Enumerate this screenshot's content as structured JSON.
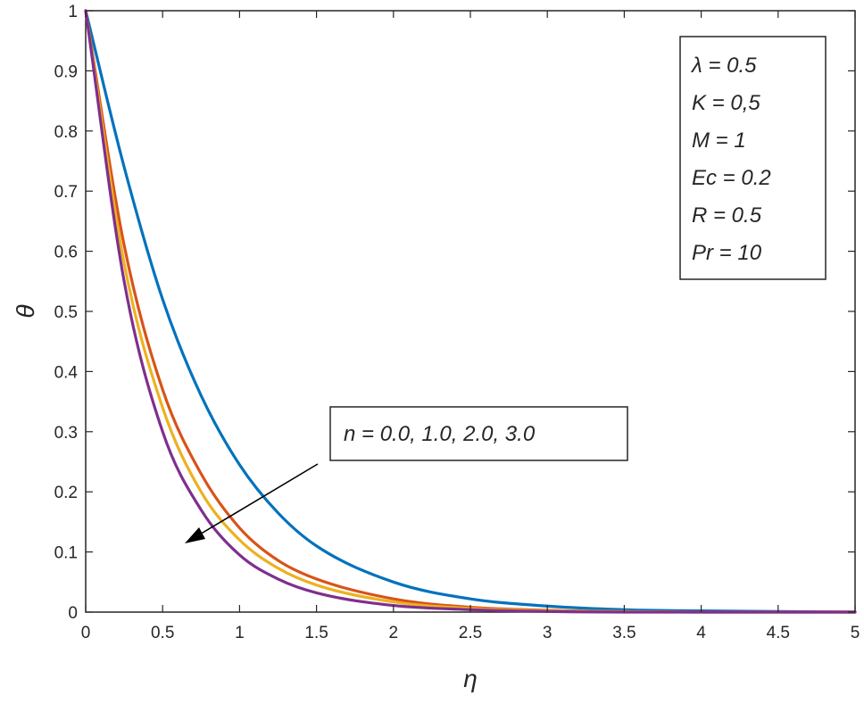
{
  "chart_data": {
    "type": "line",
    "xlabel": "η",
    "ylabel": "θ",
    "xlim": [
      0,
      5
    ],
    "ylim": [
      0,
      1
    ],
    "x_ticks": [
      "0",
      "0.5",
      "1",
      "1.5",
      "2",
      "2.5",
      "3",
      "3.5",
      "4",
      "4.5",
      "5"
    ],
    "y_ticks": [
      "0",
      "0.1",
      "0.2",
      "0.3",
      "0.4",
      "0.5",
      "0.6",
      "0.7",
      "0.8",
      "0.9",
      "1"
    ],
    "grid": false,
    "parameters_box": [
      "λ = 0.5",
      "K = 0,5",
      "M = 1",
      "Ec = 0.2",
      "R = 0.5",
      "Pr = 10"
    ],
    "annotation": "n = 0.0, 1.0, 2.0, 3.0",
    "x": [
      0,
      0.25,
      0.5,
      0.75,
      1,
      1.25,
      1.5,
      2,
      2.5,
      3,
      3.5,
      4,
      4.5,
      5
    ],
    "series": [
      {
        "color": "#0072BD",
        "values": [
          1,
          0.74,
          0.52,
          0.36,
          0.245,
          0.165,
          0.11,
          0.05,
          0.022,
          0.01,
          0.004,
          0.002,
          0.001,
          0
        ]
      },
      {
        "color": "#D95319",
        "values": [
          1,
          0.61,
          0.37,
          0.23,
          0.14,
          0.086,
          0.055,
          0.022,
          0.008,
          0.003,
          0.001,
          0,
          0,
          0
        ]
      },
      {
        "color": "#EDB120",
        "values": [
          1,
          0.58,
          0.34,
          0.2,
          0.12,
          0.073,
          0.045,
          0.017,
          0.006,
          0.002,
          0.001,
          0,
          0,
          0
        ]
      },
      {
        "color": "#7E2F8E",
        "values": [
          1,
          0.55,
          0.3,
          0.17,
          0.095,
          0.055,
          0.032,
          0.011,
          0.004,
          0.001,
          0,
          0,
          0,
          0
        ]
      }
    ]
  }
}
